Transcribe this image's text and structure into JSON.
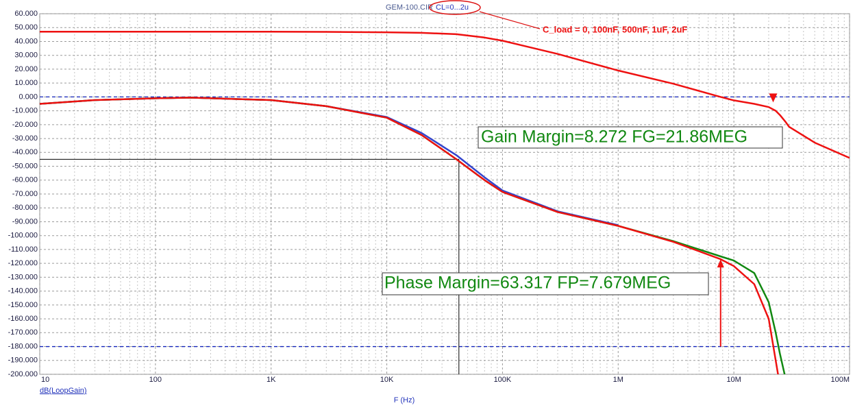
{
  "chart_data": {
    "type": "line",
    "title": "GEM-100.CIR",
    "subtitle": "CL=0...2u",
    "note": "C_load = 0, 100nF, 500nF, 1uF, 2uF",
    "x_label": "F (Hz)",
    "y_label": "dB(LoopGain)",
    "log_x": true,
    "grid": true,
    "xlim": [
      10,
      100000000
    ],
    "xticks": [
      10,
      100,
      {
        "value": 1000,
        "label": "1K"
      },
      {
        "value": 10000,
        "label": "10K"
      },
      {
        "value": 100000,
        "label": "100K"
      },
      {
        "value": 1000000,
        "label": "1M"
      },
      {
        "value": 10000000,
        "label": "10M"
      },
      {
        "value": 100000000,
        "label": "100M"
      }
    ],
    "ylim": [
      -200,
      60
    ],
    "yticks": [
      {
        "value": 60,
        "label": "60.000"
      },
      {
        "value": 50,
        "label": "50.000"
      },
      {
        "value": 40,
        "label": "40.000"
      },
      {
        "value": 30,
        "label": "30.000"
      },
      {
        "value": 20,
        "label": "20.000"
      },
      {
        "value": 10,
        "label": "10.000"
      },
      {
        "value": 0,
        "label": "0.000"
      },
      {
        "value": -10,
        "label": "-10.000"
      },
      {
        "value": -20,
        "label": "-20.000"
      },
      {
        "value": -30,
        "label": "-30.000"
      },
      {
        "value": -40,
        "label": "-40.000"
      },
      {
        "value": -50,
        "label": "-50.000"
      },
      {
        "value": -60,
        "label": "-60.000"
      },
      {
        "value": -70,
        "label": "-70.000"
      },
      {
        "value": -80,
        "label": "-80.000"
      },
      {
        "value": -90,
        "label": "-90.000"
      },
      {
        "value": -100,
        "label": "-100.000"
      },
      {
        "value": -110,
        "label": "-110.000"
      },
      {
        "value": -120,
        "label": "-120.000"
      },
      {
        "value": -130,
        "label": "-130.000"
      },
      {
        "value": -140,
        "label": "-140.000"
      },
      {
        "value": -150,
        "label": "-150.000"
      },
      {
        "value": -160,
        "label": "-160.000"
      },
      {
        "value": -170,
        "label": "-170.000"
      },
      {
        "value": -180,
        "label": "-180.000"
      },
      {
        "value": -190,
        "label": "-190.000"
      },
      {
        "value": -200,
        "label": "-200.000"
      }
    ],
    "x": [
      10,
      30,
      100,
      200,
      1000,
      3000,
      10000,
      20000,
      40000,
      70000,
      100000,
      300000,
      1000000,
      3000000,
      7679000,
      10000000,
      15000000,
      20000000,
      23000000,
      25000000,
      28000000,
      30000000,
      50000000,
      100000000
    ],
    "series": [
      {
        "color": "#ee1111",
        "values": [
          47,
          47,
          47,
          47,
          47,
          46.9,
          46.6,
          46.2,
          45.2,
          42.8,
          40.5,
          31,
          19,
          9.5,
          0,
          -2.5,
          -5,
          -7.3,
          -10,
          -13,
          -18,
          -21.5,
          -33,
          -44
        ]
      },
      {
        "color": "#3344cc",
        "values": [
          -5,
          -2.3,
          -1,
          -0.5,
          -2.3,
          -6.7,
          -14.5,
          -26,
          -42,
          -58,
          -67.5,
          -82.5,
          -92.5,
          null,
          null,
          null,
          null,
          null,
          null,
          null,
          null,
          null,
          null,
          null
        ]
      },
      {
        "color": "#118811",
        "values": [
          -5,
          -2.3,
          -1,
          -0.5,
          -2.3,
          -6.7,
          -15,
          -27.5,
          -45,
          -60,
          -68.5,
          -83,
          -93,
          -104,
          -115,
          -118,
          -127,
          -148,
          -170,
          -185,
          -203,
          null,
          null,
          null
        ]
      },
      {
        "color": "#ee1111",
        "values": [
          -5,
          -2.3,
          -1,
          -0.5,
          -2.3,
          -6.7,
          -15,
          -27.5,
          -45,
          -60,
          -68.5,
          -83,
          -93,
          -104.5,
          -117,
          -122,
          -135,
          -160,
          -190,
          -208,
          null,
          null,
          null,
          null
        ]
      }
    ],
    "reference_lines": [
      0,
      -180
    ],
    "cursor": {
      "x": 42000,
      "y": -45
    },
    "gain_marker": {
      "x": 21860000,
      "y": 0
    },
    "phase_arrow": {
      "x": 7679000,
      "from": -180,
      "to": -117
    },
    "annotations": [
      "Gain Margin=8.272 FG=21.86MEG",
      "Phase Margin=63.317 FP=7.679MEG"
    ]
  }
}
